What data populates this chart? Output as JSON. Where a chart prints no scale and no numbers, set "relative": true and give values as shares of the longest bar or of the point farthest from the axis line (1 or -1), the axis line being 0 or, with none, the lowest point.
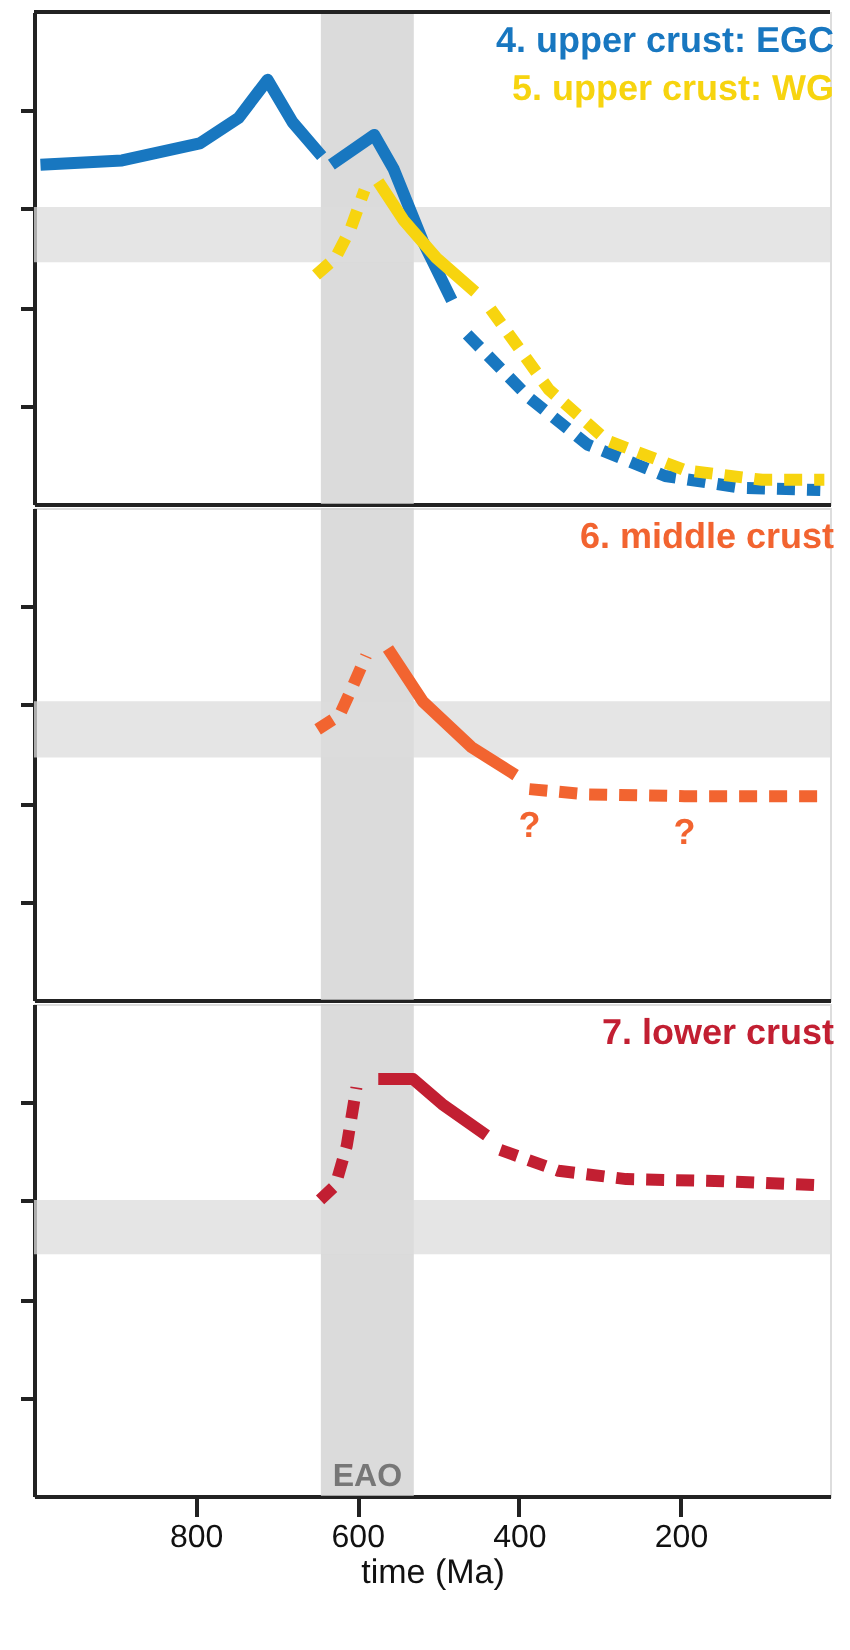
{
  "chart_data": [
    {
      "type": "line",
      "relative": true,
      "xlim": [
        1000,
        15
      ],
      "xticks": [
        800,
        600,
        400,
        200
      ],
      "tick_labels": false,
      "bands": [
        {
          "axis": "x",
          "from": 645,
          "to": 530,
          "color": "#cfcfcf"
        },
        {
          "axis": "y",
          "from": 0.57,
          "to": 0.7,
          "color": "#dcdcdc"
        }
      ],
      "series": [
        {
          "name": "4. upper crust: EGC",
          "color": "#1877c0",
          "line_style": "solid",
          "x": [
            992,
            891,
            795,
            747,
            711,
            680,
            644
          ],
          "values": [
            0.8,
            0.81,
            0.85,
            0.91,
            1.0,
            0.9,
            0.82
          ]
        },
        {
          "color": "#1877c0",
          "line_style": "solid",
          "x": [
            632,
            579,
            555,
            519,
            483
          ],
          "values": [
            0.8,
            0.87,
            0.79,
            0.62,
            0.48
          ]
        },
        {
          "color": "#1877c0",
          "line_style": "dashed",
          "x": [
            464,
            387,
            315,
            219,
            123,
            27
          ],
          "values": [
            0.4,
            0.25,
            0.14,
            0.066,
            0.038,
            0.033
          ]
        },
        {
          "name": "5. upper crust: WG",
          "color": "#f7d40f",
          "line_style": "dashed",
          "x": [
            651,
            627,
            608,
            591
          ],
          "values": [
            0.54,
            0.58,
            0.65,
            0.74
          ]
        },
        {
          "color": "#f7d40f",
          "line_style": "solid",
          "x": [
            574,
            543,
            502,
            454
          ],
          "values": [
            0.76,
            0.67,
            0.58,
            0.5
          ]
        },
        {
          "color": "#f7d40f",
          "line_style": "dashed",
          "x": [
            435,
            363,
            291,
            195,
            99,
            22
          ],
          "values": [
            0.46,
            0.27,
            0.15,
            0.08,
            0.057,
            0.057
          ]
        }
      ]
    },
    {
      "type": "line",
      "relative": true,
      "xlim": [
        1000,
        15
      ],
      "xticks": [
        800,
        600,
        400,
        200
      ],
      "tick_labels": false,
      "bands": [
        {
          "axis": "x",
          "from": 645,
          "to": 530,
          "color": "#cfcfcf"
        },
        {
          "axis": "y",
          "from": 0.69,
          "to": 0.85,
          "color": "#dcdcdc"
        }
      ],
      "annotations": [
        "?",
        "?"
      ],
      "series": [
        {
          "name": "6. middle crust",
          "color": "#f26430",
          "line_style": "dashed",
          "x": [
            649,
            622,
            608,
            589
          ],
          "values": [
            0.77,
            0.81,
            0.88,
            0.98
          ]
        },
        {
          "color": "#f26430",
          "line_style": "solid",
          "x": [
            562,
            519,
            459,
            404
          ],
          "values": [
            1.0,
            0.85,
            0.72,
            0.64
          ]
        },
        {
          "color": "#f26430",
          "line_style": "dashed",
          "x": [
            387,
            315,
            195,
            27
          ],
          "values": [
            0.6,
            0.585,
            0.58,
            0.58
          ]
        }
      ]
    },
    {
      "type": "line",
      "relative": true,
      "xlim": [
        1000,
        15
      ],
      "xticks": [
        800,
        600,
        400,
        200
      ],
      "tick_labels": "x",
      "xlabel": "time (Ma)",
      "bands": [
        {
          "axis": "x",
          "from": 645,
          "to": 530,
          "color": "#cfcfcf",
          "label": "EAO"
        },
        {
          "axis": "y",
          "from": 0.58,
          "to": 0.71,
          "color": "#dcdcdc"
        }
      ],
      "series": [
        {
          "name": "7. lower crust",
          "color": "#c21f32",
          "line_style": "dashed",
          "x": [
            646,
            627,
            613,
            601
          ],
          "values": [
            0.71,
            0.745,
            0.84,
            0.98
          ]
        },
        {
          "color": "#c21f32",
          "line_style": "solid",
          "x": [
            574,
            531,
            495,
            440
          ],
          "values": [
            1.0,
            1.0,
            0.94,
            0.865
          ]
        },
        {
          "color": "#c21f32",
          "line_style": "dashed",
          "x": [
            423,
            351,
            267,
            147,
            27
          ],
          "values": [
            0.83,
            0.78,
            0.76,
            0.755,
            0.745
          ]
        }
      ]
    }
  ]
}
